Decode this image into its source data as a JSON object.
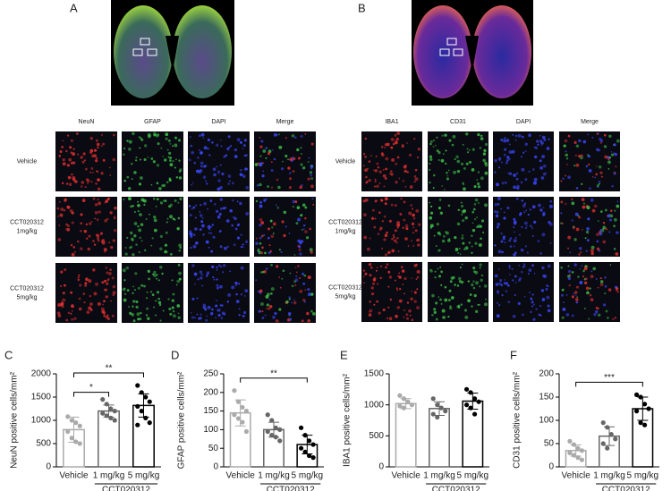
{
  "figure": {
    "panel_labels": [
      "A",
      "B",
      "C",
      "D",
      "E",
      "F"
    ],
    "image_grids": [
      {
        "columns": [
          "NeuN",
          "GFAP",
          "DAPI",
          "Merge"
        ],
        "colors": [
          "#e03030",
          "#3cc048",
          "#3a48ff"
        ],
        "rows": [
          [
            "Vehicle"
          ],
          [
            "CCT020312",
            "1mg/kg"
          ],
          [
            "CCT020312",
            "5mg/kg"
          ]
        ]
      },
      {
        "columns": [
          "IBA1",
          "CD31",
          "DAPI",
          "Merge"
        ],
        "colors": [
          "#e03030",
          "#3cc048",
          "#3a48ff"
        ],
        "rows": [
          [
            "Vehicle"
          ],
          [
            "CCT020312",
            "1mg/kg"
          ],
          [
            "CCT020312",
            "5mg/kg"
          ]
        ]
      }
    ]
  },
  "chart_data": [
    {
      "type": "bar",
      "ylabel": "NeuN positive cells/mm²",
      "categories": [
        "Vehicle",
        "1 mg/kg",
        "5 mg/kg"
      ],
      "group": "CCT020312",
      "colors": [
        "#aaaaaa",
        "#666666",
        "#000000"
      ],
      "values": [
        800,
        1200,
        1320
      ],
      "errors": [
        270,
        130,
        250
      ],
      "points": [
        [
          1080,
          1000,
          950,
          880,
          760,
          620,
          540,
          500
        ],
        [
          1450,
          1350,
          1250,
          1200,
          1150,
          1100,
          1050,
          1000
        ],
        [
          1750,
          1600,
          1500,
          1400,
          1300,
          1200,
          1050,
          950,
          900
        ]
      ],
      "significance": [
        {
          "label": "*",
          "pair": [
            0,
            1
          ]
        },
        {
          "label": "**",
          "pair": [
            0,
            2
          ]
        }
      ],
      "ylim": [
        0,
        2000
      ],
      "yticks": [
        0,
        500,
        1000,
        1500,
        2000
      ]
    },
    {
      "type": "bar",
      "ylabel": "GFAP positive cells/mm²",
      "categories": [
        "Vehicle",
        "1 mg/kg",
        "5 mg/kg"
      ],
      "group": "CCT020312",
      "colors": [
        "#aaaaaa",
        "#666666",
        "#000000"
      ],
      "values": [
        145,
        100,
        60
      ],
      "errors": [
        35,
        20,
        25
      ],
      "points": [
        [
          205,
          175,
          160,
          150,
          140,
          130,
          120,
          95
        ],
        [
          140,
          125,
          105,
          100,
          95,
          85,
          80,
          70
        ],
        [
          105,
          85,
          70,
          60,
          50,
          40,
          30,
          25
        ]
      ],
      "significance": [
        {
          "label": "**",
          "pair": [
            0,
            2
          ]
        }
      ],
      "ylim": [
        0,
        250
      ],
      "yticks": [
        0,
        50,
        100,
        150,
        200,
        250
      ]
    },
    {
      "type": "bar",
      "ylabel": "IBA1 positive cells/mm²",
      "categories": [
        "Vehicle",
        "1 mg/kg",
        "5 mg/kg"
      ],
      "group": "CCT020312",
      "colors": [
        "#aaaaaa",
        "#666666",
        "#000000"
      ],
      "values": [
        1020,
        940,
        1060
      ],
      "errors": [
        80,
        110,
        130
      ],
      "points": [
        [
          1150,
          1100,
          1050,
          1000,
          980,
          950
        ],
        [
          1100,
          1000,
          950,
          900,
          850,
          800
        ],
        [
          1250,
          1200,
          1100,
          1050,
          1000,
          950,
          850
        ]
      ],
      "significance": [],
      "ylim": [
        0,
        1500
      ],
      "yticks": [
        0,
        500,
        1000,
        1500
      ]
    },
    {
      "type": "bar",
      "ylabel": "CD31 positive cells/mm²",
      "categories": [
        "Vehicle",
        "1 mg/kg",
        "5 mg/kg"
      ],
      "group": "CCT020312",
      "colors": [
        "#aaaaaa",
        "#666666",
        "#000000"
      ],
      "values": [
        35,
        66,
        125
      ],
      "errors": [
        12,
        20,
        25
      ],
      "points": [
        [
          55,
          48,
          40,
          35,
          30,
          25,
          20,
          15
        ],
        [
          95,
          85,
          70,
          60,
          50,
          40
        ],
        [
          155,
          150,
          135,
          125,
          120,
          95,
          90
        ]
      ],
      "significance": [
        {
          "label": "***",
          "pair": [
            0,
            2
          ]
        }
      ],
      "ylim": [
        0,
        200
      ],
      "yticks": [
        0,
        50,
        100,
        150,
        200
      ]
    }
  ]
}
